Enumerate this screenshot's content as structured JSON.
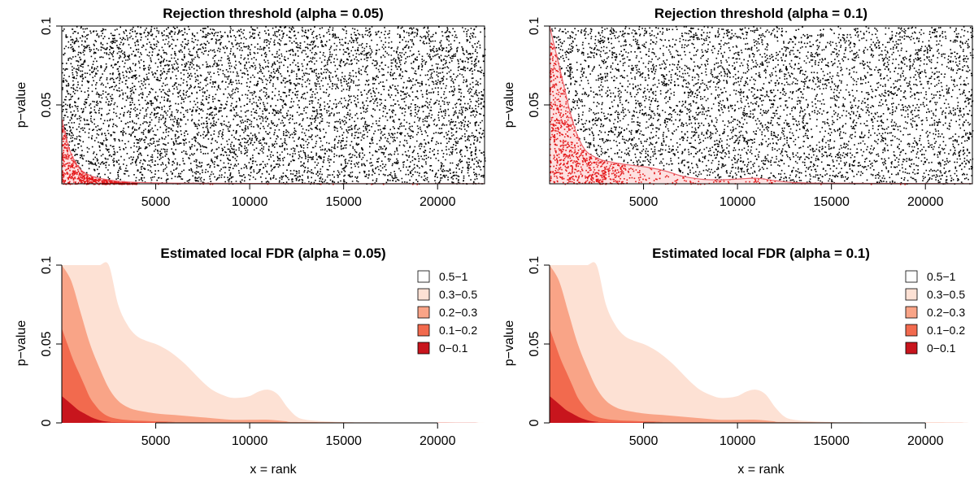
{
  "colors": {
    "points_rejected": "#e41a1c",
    "points_other": "#000000",
    "threshold_fill": "#fcd7d7",
    "threshold_line": "#e8626b",
    "fdr_0_0.1": "#c8151d",
    "fdr_0.1_0.2": "#f26a4e",
    "fdr_0.2_0.3": "#f9a487",
    "fdr_0.3_0.5": "#fde1d4",
    "fdr_0.5_1": "#ffffff"
  },
  "chart_data": [
    {
      "type": "scatter",
      "title": "Rejection threshold (alpha = 0.05)",
      "xlabel": "",
      "ylabel": "p−value",
      "xlim": [
        0,
        22500
      ],
      "ylim": [
        0,
        0.1
      ],
      "x_ticks": [
        5000,
        10000,
        15000,
        20000
      ],
      "x_tick_labels": [
        "5000",
        "10000",
        "15000",
        "20000"
      ],
      "y_ticks": [
        0.05,
        0.1
      ],
      "y_tick_labels": [
        "0.05",
        "0.1"
      ],
      "threshold": {
        "x": [
          0,
          150,
          400,
          700,
          1000,
          1300,
          1600,
          2000,
          2500,
          3000,
          4000,
          6000,
          10000,
          15000,
          22500
        ],
        "y": [
          0.041,
          0.033,
          0.022,
          0.014,
          0.009,
          0.0065,
          0.0048,
          0.0035,
          0.0025,
          0.0017,
          0.0009,
          0.0004,
          0.0002,
          0.0001,
          0.0001
        ]
      },
      "points": {
        "n": 6000,
        "y_max": 0.1,
        "rejected_below_threshold": true
      }
    },
    {
      "type": "scatter",
      "title": "Rejection threshold (alpha = 0.1)",
      "xlabel": "",
      "ylabel": "p−value",
      "xlim": [
        0,
        22500
      ],
      "ylim": [
        0,
        0.1
      ],
      "x_ticks": [
        5000,
        10000,
        15000,
        20000
      ],
      "x_tick_labels": [
        "5000",
        "10000",
        "15000",
        "20000"
      ],
      "y_ticks": [
        0.05,
        0.1
      ],
      "y_tick_labels": [
        "0.05",
        "0.1"
      ],
      "threshold": {
        "x": [
          0,
          200,
          500,
          800,
          1100,
          1400,
          1700,
          2000,
          2400,
          2800,
          3400,
          4200,
          5200,
          6200,
          7000,
          8000,
          9000,
          10000,
          11000,
          12000,
          13000,
          15000,
          22500
        ],
        "y": [
          0.1,
          0.09,
          0.075,
          0.06,
          0.045,
          0.033,
          0.025,
          0.02,
          0.017,
          0.015,
          0.0135,
          0.012,
          0.0105,
          0.008,
          0.005,
          0.003,
          0.0025,
          0.003,
          0.0035,
          0.002,
          0.0008,
          0.0003,
          0.0001
        ]
      },
      "points": {
        "n": 6000,
        "y_max": 0.1,
        "rejected_below_threshold": true
      }
    },
    {
      "type": "area",
      "title": "Estimated local FDR (alpha = 0.05)",
      "xlabel": "x = rank",
      "ylabel": "p−value",
      "xlim": [
        0,
        22500
      ],
      "ylim": [
        0,
        0.1
      ],
      "x_ticks": [
        5000,
        10000,
        15000,
        20000
      ],
      "x_tick_labels": [
        "5000",
        "10000",
        "15000",
        "20000"
      ],
      "y_ticks": [
        0,
        0.05,
        0.1
      ],
      "y_tick_labels": [
        "0",
        "0.05",
        "0.1"
      ],
      "legend_position": "top-right",
      "legend": [
        "0.5−1",
        "0.3−0.5",
        "0.2−0.3",
        "0.1−0.2",
        "0−0.1"
      ],
      "bands": [
        {
          "name": "0.3−0.5",
          "x": [
            0,
            500,
            1000,
            1500,
            2000,
            2500,
            3000,
            3500,
            4000,
            4500,
            5000,
            5500,
            6000,
            6500,
            7000,
            7500,
            8000,
            8500,
            9000,
            9500,
            10000,
            10500,
            11000,
            11500,
            12000,
            12500,
            13000,
            14000,
            15000,
            16000,
            22500
          ],
          "y": [
            0.1,
            0.1,
            0.1,
            0.1,
            0.1,
            0.1,
            0.075,
            0.062,
            0.055,
            0.052,
            0.05,
            0.047,
            0.043,
            0.038,
            0.032,
            0.026,
            0.021,
            0.018,
            0.016,
            0.016,
            0.017,
            0.02,
            0.021,
            0.018,
            0.01,
            0.004,
            0.002,
            0.001,
            0.0005,
            0.0002,
            0
          ]
        },
        {
          "name": "0.2−0.3",
          "x": [
            0,
            500,
            1000,
            1500,
            2000,
            2500,
            3000,
            3500,
            4000,
            5000,
            6000,
            7000,
            8000,
            9000,
            10000,
            11000,
            12000,
            13000,
            22500
          ],
          "y": [
            0.1,
            0.09,
            0.07,
            0.05,
            0.035,
            0.022,
            0.014,
            0.01,
            0.008,
            0.006,
            0.005,
            0.004,
            0.003,
            0.002,
            0.002,
            0.002,
            0.001,
            0.0005,
            0
          ]
        },
        {
          "name": "0.1−0.2",
          "x": [
            0,
            300,
            600,
            900,
            1200,
            1500,
            1800,
            2100,
            2500,
            3000,
            3500,
            4000,
            5000,
            6000,
            7000,
            22500
          ],
          "y": [
            0.06,
            0.05,
            0.04,
            0.032,
            0.024,
            0.016,
            0.011,
            0.007,
            0.004,
            0.0025,
            0.0018,
            0.0014,
            0.001,
            0.0007,
            0.0003,
            0
          ]
        },
        {
          "name": "0−0.1",
          "x": [
            0,
            300,
            600,
            900,
            1200,
            1500,
            1800,
            2200,
            2600,
            3000,
            22500
          ],
          "y": [
            0.017,
            0.014,
            0.011,
            0.008,
            0.006,
            0.004,
            0.0025,
            0.0012,
            0.0006,
            0.0002,
            0
          ]
        }
      ]
    },
    {
      "type": "area",
      "title": "Estimated local FDR (alpha = 0.1)",
      "xlabel": "x = rank",
      "ylabel": "p−value",
      "xlim": [
        0,
        22500
      ],
      "ylim": [
        0,
        0.1
      ],
      "x_ticks": [
        5000,
        10000,
        15000,
        20000
      ],
      "x_tick_labels": [
        "5000",
        "10000",
        "15000",
        "20000"
      ],
      "y_ticks": [
        0,
        0.05,
        0.1
      ],
      "y_tick_labels": [
        "0",
        "0.05",
        "0.1"
      ],
      "legend_position": "top-right",
      "legend": [
        "0.5−1",
        "0.3−0.5",
        "0.2−0.3",
        "0.1−0.2",
        "0−0.1"
      ],
      "bands": [
        {
          "name": "0.3−0.5",
          "x": [
            0,
            500,
            1000,
            1500,
            2000,
            2500,
            3000,
            3500,
            4000,
            4500,
            5000,
            5500,
            6000,
            6500,
            7000,
            7500,
            8000,
            8500,
            9000,
            9500,
            10000,
            10500,
            11000,
            11500,
            12000,
            12500,
            13000,
            14000,
            15000,
            16000,
            22500
          ],
          "y": [
            0.1,
            0.1,
            0.1,
            0.1,
            0.1,
            0.1,
            0.075,
            0.062,
            0.055,
            0.052,
            0.05,
            0.047,
            0.043,
            0.038,
            0.032,
            0.026,
            0.021,
            0.018,
            0.016,
            0.016,
            0.017,
            0.02,
            0.021,
            0.018,
            0.01,
            0.004,
            0.002,
            0.001,
            0.0005,
            0.0002,
            0
          ]
        },
        {
          "name": "0.2−0.3",
          "x": [
            0,
            500,
            1000,
            1500,
            2000,
            2500,
            3000,
            3500,
            4000,
            5000,
            6000,
            7000,
            8000,
            9000,
            10000,
            11000,
            12000,
            13000,
            22500
          ],
          "y": [
            0.1,
            0.09,
            0.07,
            0.05,
            0.035,
            0.022,
            0.014,
            0.01,
            0.008,
            0.006,
            0.005,
            0.004,
            0.003,
            0.002,
            0.002,
            0.002,
            0.001,
            0.0005,
            0
          ]
        },
        {
          "name": "0.1−0.2",
          "x": [
            0,
            300,
            600,
            900,
            1200,
            1500,
            1800,
            2100,
            2500,
            3000,
            3500,
            4000,
            5000,
            6000,
            7000,
            22500
          ],
          "y": [
            0.06,
            0.05,
            0.04,
            0.032,
            0.024,
            0.016,
            0.011,
            0.007,
            0.004,
            0.0025,
            0.0018,
            0.0014,
            0.001,
            0.0007,
            0.0003,
            0
          ]
        },
        {
          "name": "0−0.1",
          "x": [
            0,
            300,
            600,
            900,
            1200,
            1500,
            1800,
            2200,
            2600,
            3000,
            22500
          ],
          "y": [
            0.017,
            0.014,
            0.011,
            0.008,
            0.006,
            0.004,
            0.0025,
            0.0012,
            0.0006,
            0.0002,
            0
          ]
        }
      ]
    }
  ]
}
